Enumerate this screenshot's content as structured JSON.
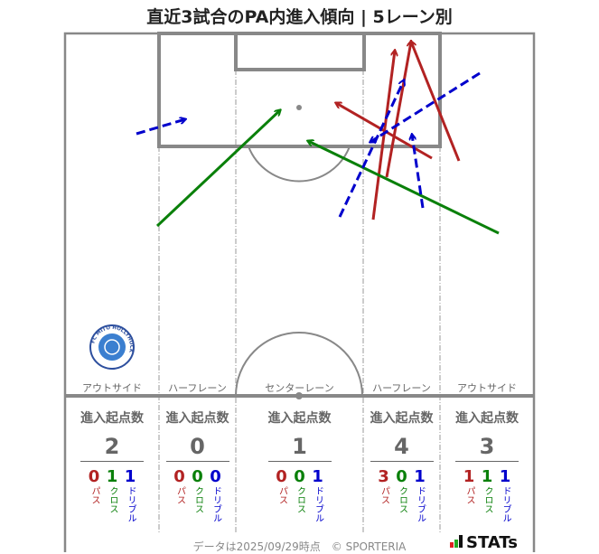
{
  "title": "直近3試合のPA内進入傾向 | 5レーン別",
  "colors": {
    "pass": "#b22222",
    "cross": "#0a800a",
    "dribble": "#0000cc"
  },
  "lanes": [
    {
      "label": "アウトサイド",
      "header": "進入起点数",
      "total": "2",
      "pass": "0",
      "cross": "1",
      "dribble": "1"
    },
    {
      "label": "ハーフレーン",
      "header": "進入起点数",
      "total": "0",
      "pass": "0",
      "cross": "0",
      "dribble": "0"
    },
    {
      "label": "センターレーン",
      "header": "進入起点数",
      "total": "1",
      "pass": "0",
      "cross": "0",
      "dribble": "1"
    },
    {
      "label": "ハーフレーン",
      "header": "進入起点数",
      "total": "4",
      "pass": "3",
      "cross": "0",
      "dribble": "1"
    },
    {
      "label": "アウトサイド",
      "header": "進入起点数",
      "total": "3",
      "pass": "1",
      "cross": "1",
      "dribble": "1"
    }
  ],
  "type_labels": {
    "pass": "パス",
    "cross": "クロス",
    "dribble": "ドリブル"
  },
  "footer": "データは2025/09/29時点　© SPORTERIA",
  "logo": "STATs",
  "team_logo_text": "FC MITO HOLLYHOCK"
}
